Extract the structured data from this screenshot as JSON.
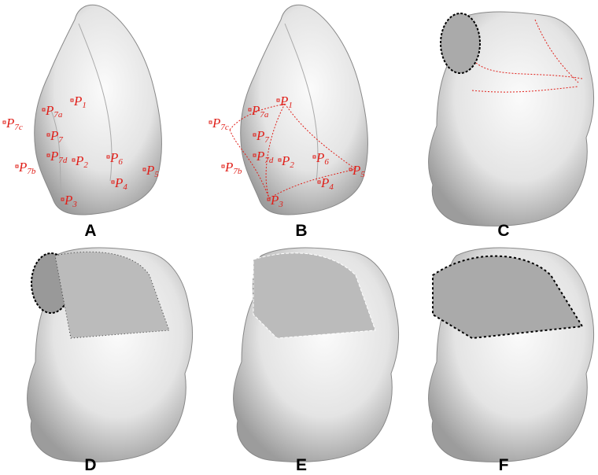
{
  "panels": [
    {
      "label": "A",
      "points": [
        {
          "main": "P",
          "sub": "1"
        },
        {
          "main": "P",
          "sub": "7a"
        },
        {
          "main": "P",
          "sub": "7c"
        },
        {
          "main": "P",
          "sub": "7"
        },
        {
          "main": "P",
          "sub": "7d"
        },
        {
          "main": "P",
          "sub": "2"
        },
        {
          "main": "P",
          "sub": "6"
        },
        {
          "main": "P",
          "sub": "7b"
        },
        {
          "main": "P",
          "sub": "4"
        },
        {
          "main": "P",
          "sub": "5"
        },
        {
          "main": "P",
          "sub": "3"
        }
      ]
    },
    {
      "label": "B",
      "points": [
        {
          "main": "P",
          "sub": "1"
        },
        {
          "main": "P",
          "sub": "7a"
        },
        {
          "main": "P",
          "sub": "7c"
        },
        {
          "main": "P",
          "sub": "7"
        },
        {
          "main": "P",
          "sub": "7d"
        },
        {
          "main": "P",
          "sub": "2"
        },
        {
          "main": "P",
          "sub": "6"
        },
        {
          "main": "P",
          "sub": "7b"
        },
        {
          "main": "P",
          "sub": "4"
        },
        {
          "main": "P",
          "sub": "5"
        },
        {
          "main": "P",
          "sub": "3"
        }
      ]
    },
    {
      "label": "C"
    },
    {
      "label": "D"
    },
    {
      "label": "E"
    },
    {
      "label": "F"
    }
  ]
}
